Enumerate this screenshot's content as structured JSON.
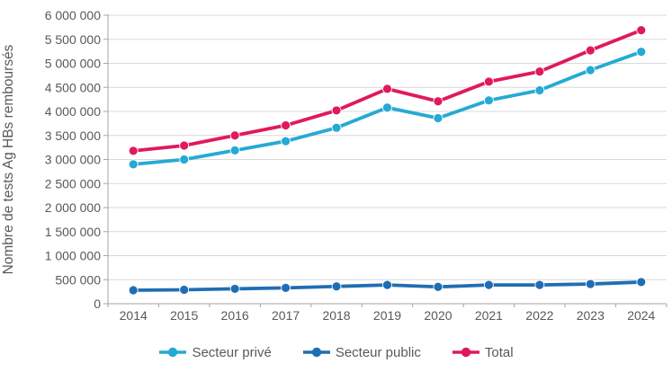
{
  "chart_data": {
    "type": "line",
    "title": "",
    "xlabel": "",
    "ylabel": "Nombre de tests Ag HBs remboursés",
    "categories": [
      "2014",
      "2015",
      "2016",
      "2017",
      "2018",
      "2019",
      "2020",
      "2021",
      "2022",
      "2023",
      "2024"
    ],
    "ylim": [
      0,
      6000000
    ],
    "ytick_step": 500000,
    "ytick_labels": [
      "0",
      "500 000",
      "1 000 000",
      "1 500 000",
      "2 000 000",
      "2 500 000",
      "3 000 000",
      "3 500 000",
      "4 000 000",
      "4 500 000",
      "5 000 000",
      "5 500 000",
      "6 000 000"
    ],
    "grid": "horizontal",
    "legend_position": "bottom-center",
    "series": [
      {
        "name": "Secteur privé",
        "color": "#25AAD3",
        "marker": "circle",
        "values": [
          2900000,
          3000000,
          3190000,
          3380000,
          3660000,
          4080000,
          3860000,
          4230000,
          4440000,
          4860000,
          5240000
        ]
      },
      {
        "name": "Secteur public",
        "color": "#1F6EB4",
        "marker": "circle",
        "values": [
          280000,
          290000,
          310000,
          330000,
          360000,
          390000,
          350000,
          390000,
          390000,
          410000,
          450000
        ]
      },
      {
        "name": "Total",
        "color": "#E0195E",
        "marker": "circle",
        "values": [
          3180000,
          3290000,
          3500000,
          3710000,
          4020000,
          4470000,
          4210000,
          4620000,
          4830000,
          5270000,
          5690000
        ]
      }
    ]
  },
  "styles": {
    "text_color": "#595959",
    "gridline_color": "#D9D9D9",
    "axis_color": "#A6A6A6",
    "background": "#FFFFFF"
  }
}
